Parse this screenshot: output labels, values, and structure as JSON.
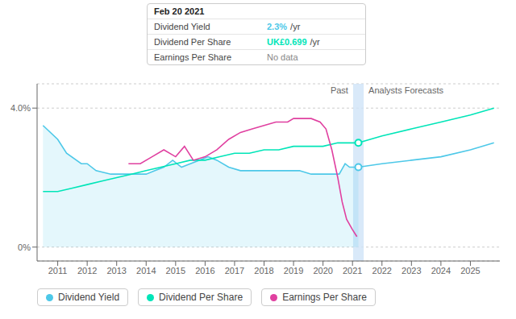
{
  "chart_data": {
    "type": "line",
    "xlim": [
      2010.3,
      2026.0
    ],
    "ylim": [
      -0.004,
      0.047
    ],
    "xticks": [
      2011,
      2012,
      2013,
      2014,
      2015,
      2016,
      2017,
      2018,
      2019,
      2020,
      2021,
      2022,
      2023,
      2024,
      2025
    ],
    "yticks": [
      {
        "value": 0,
        "label": "0%"
      },
      {
        "value": 0.04,
        "label": "4.0%"
      }
    ],
    "grid": true,
    "divider_x": 2021.2,
    "annotations": [
      "Past",
      "Analysts Forecasts"
    ],
    "series": [
      {
        "name": "Dividend Yield",
        "type": "area",
        "color": "#4dc8e8",
        "x": [
          2010.5,
          2011.0,
          2011.3,
          2011.8,
          2012.0,
          2012.3,
          2012.8,
          2013.2,
          2013.6,
          2014.0,
          2014.3,
          2014.6,
          2014.9,
          2015.2,
          2015.5,
          2015.8,
          2016.1,
          2016.4,
          2016.8,
          2017.2,
          2017.6,
          2018.0,
          2018.4,
          2018.8,
          2019.2,
          2019.6,
          2020.0,
          2020.3,
          2020.55,
          2020.75,
          2020.9,
          2021.1,
          2021.2
        ],
        "values": [
          0.035,
          0.031,
          0.027,
          0.024,
          0.024,
          0.022,
          0.021,
          0.021,
          0.021,
          0.021,
          0.022,
          0.023,
          0.025,
          0.023,
          0.024,
          0.025,
          0.026,
          0.025,
          0.023,
          0.022,
          0.022,
          0.022,
          0.022,
          0.022,
          0.022,
          0.021,
          0.021,
          0.021,
          0.021,
          0.024,
          0.023,
          0.023,
          0.023
        ]
      },
      {
        "name": "Dividend Yield",
        "type": "line",
        "color": "#4dc8e8",
        "x": [
          2021.2,
          2022.0,
          2023.0,
          2024.0,
          2025.0,
          2025.8
        ],
        "values": [
          0.023,
          0.024,
          0.025,
          0.026,
          0.028,
          0.03
        ]
      },
      {
        "name": "Dividend Per Share",
        "type": "line",
        "color": "#00e5b8",
        "x": [
          2010.5,
          2011.0,
          2011.5,
          2012.0,
          2012.5,
          2013.0,
          2013.5,
          2014.0,
          2014.5,
          2015.0,
          2015.5,
          2016.0,
          2016.5,
          2017.0,
          2017.5,
          2018.0,
          2018.5,
          2019.0,
          2019.5,
          2020.0,
          2020.5,
          2021.0,
          2021.2
        ],
        "values": [
          0.016,
          0.016,
          0.017,
          0.018,
          0.019,
          0.02,
          0.021,
          0.022,
          0.023,
          0.024,
          0.025,
          0.025,
          0.026,
          0.027,
          0.027,
          0.028,
          0.028,
          0.029,
          0.029,
          0.029,
          0.03,
          0.03,
          0.03
        ]
      },
      {
        "name": "Dividend Per Share",
        "type": "line",
        "color": "#00e5b8",
        "x": [
          2021.2,
          2022.0,
          2023.0,
          2024.0,
          2025.0,
          2025.8
        ],
        "values": [
          0.03,
          0.032,
          0.034,
          0.036,
          0.038,
          0.04
        ]
      },
      {
        "name": "Earnings Per Share",
        "type": "line",
        "color": "#e040a0",
        "x": [
          2013.4,
          2013.8,
          2014.2,
          2014.6,
          2015.0,
          2015.3,
          2015.6,
          2016.0,
          2016.4,
          2016.8,
          2017.2,
          2017.6,
          2018.0,
          2018.4,
          2018.8,
          2019.0,
          2019.3,
          2019.6,
          2019.9,
          2020.1,
          2020.3,
          2020.5,
          2020.65,
          2020.8,
          2021.0,
          2021.15
        ],
        "values": [
          0.024,
          0.024,
          0.026,
          0.028,
          0.026,
          0.029,
          0.025,
          0.026,
          0.028,
          0.031,
          0.033,
          0.034,
          0.035,
          0.036,
          0.036,
          0.037,
          0.037,
          0.037,
          0.036,
          0.034,
          0.028,
          0.02,
          0.013,
          0.008,
          0.005,
          0.003
        ]
      }
    ],
    "highlight_points": [
      {
        "x": 2021.2,
        "y": 0.03,
        "color": "#00e5b8"
      },
      {
        "x": 2021.2,
        "y": 0.023,
        "color": "#4dc8e8"
      }
    ],
    "tooltip": {
      "title": "Feb 20 2021",
      "rows": [
        {
          "label": "Dividend Yield",
          "value": "2.3%",
          "unit": "/yr",
          "color": "#4dc8e8"
        },
        {
          "label": "Dividend Per Share",
          "value": "UK£0.699",
          "unit": "/yr",
          "color": "#00e5b8"
        },
        {
          "label": "Earnings Per Share",
          "value": "No data"
        }
      ]
    }
  }
}
